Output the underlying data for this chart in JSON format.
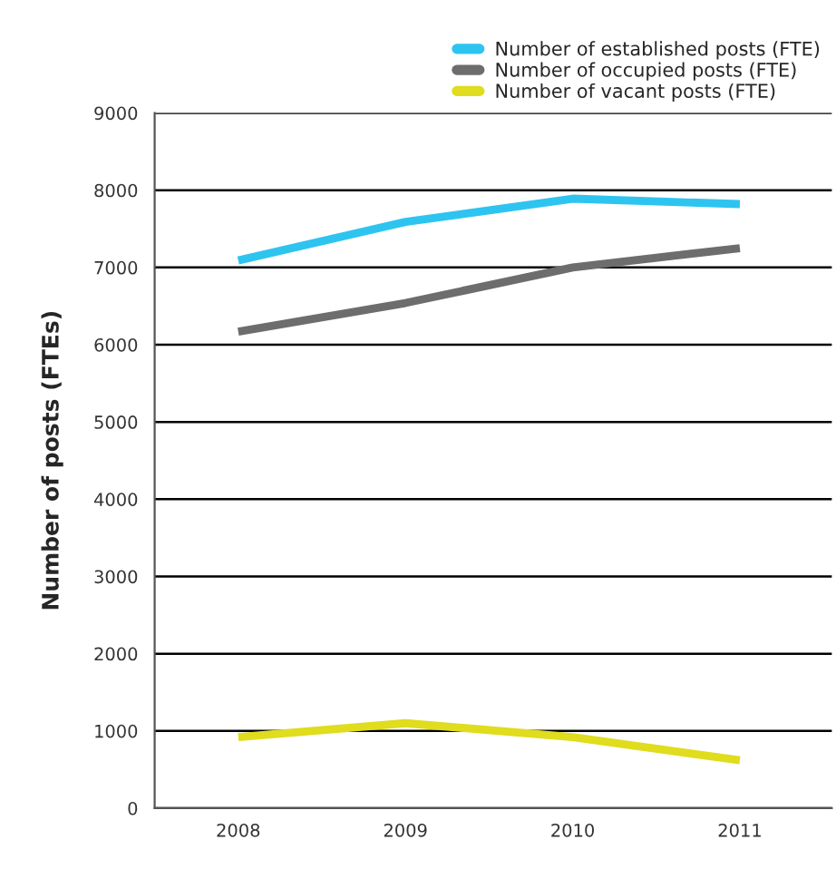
{
  "chart_data": {
    "type": "line",
    "ylabel": "Number of posts (FTEs)",
    "categories": [
      "2008",
      "2009",
      "2010",
      "2011"
    ],
    "series": [
      {
        "name": "Number of established posts (FTE)",
        "color": "#2ec4f0",
        "values": [
          7090,
          7590,
          7890,
          7820
        ]
      },
      {
        "name": "Number of occupied posts (FTE)",
        "color": "#6d6d6d",
        "values": [
          6170,
          6540,
          7000,
          7250
        ]
      },
      {
        "name": "Number of vacant posts (FTE)",
        "color": "#e0dc1e",
        "values": [
          920,
          1100,
          920,
          620
        ]
      }
    ],
    "ylim": [
      0,
      9000
    ],
    "yticks": [
      0,
      1000,
      2000,
      3000,
      4000,
      5000,
      6000,
      7000,
      8000,
      9000
    ],
    "grid": "y",
    "legend": "top right",
    "marker": "none",
    "line_style": "solid"
  }
}
